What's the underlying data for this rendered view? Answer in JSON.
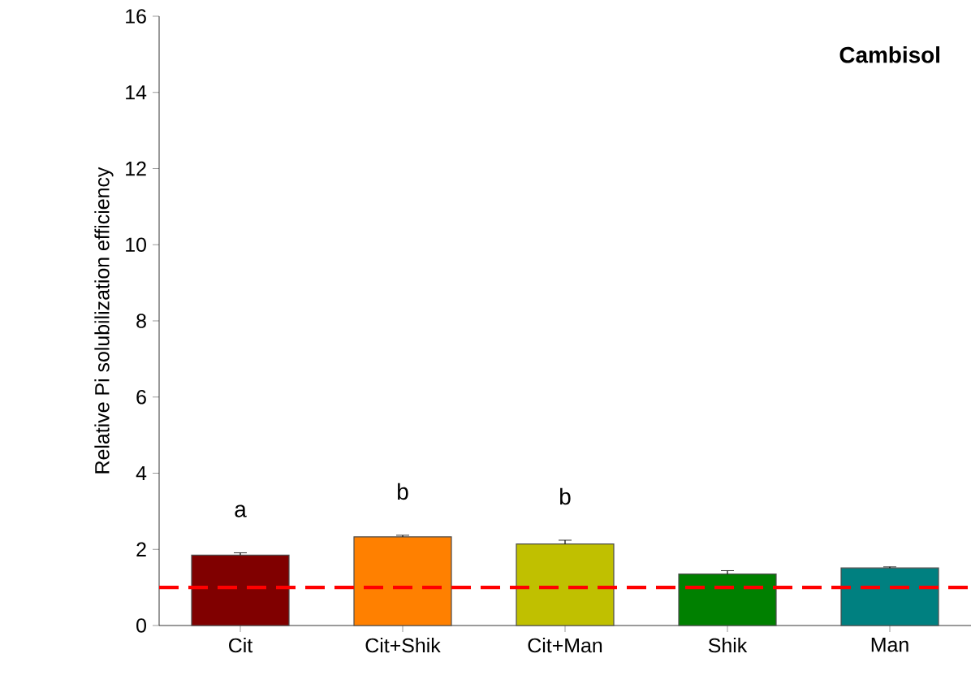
{
  "chart_data": {
    "type": "bar",
    "ylabel": "Relative Pi solubilization efficiency",
    "categories": [
      "Cit",
      "Cit+Shik",
      "Cit+Man",
      "Shik",
      "Man"
    ],
    "values": [
      1.85,
      2.33,
      2.14,
      1.35,
      1.51
    ],
    "errors": [
      0.06,
      0.04,
      0.1,
      0.09,
      0.03
    ],
    "colors": [
      "#800000",
      "#ff8000",
      "#c0c000",
      "#008000",
      "#008080"
    ],
    "ylim": [
      0,
      16
    ],
    "yticks": [
      0,
      2,
      4,
      6,
      8,
      10,
      12,
      14,
      16
    ],
    "ref_lines": [
      {
        "axis": "y",
        "value": 1,
        "color": "#ff0000",
        "line_style": "dashed"
      }
    ],
    "annotations": [
      "Cambisol",
      "a",
      "b",
      "b"
    ]
  }
}
